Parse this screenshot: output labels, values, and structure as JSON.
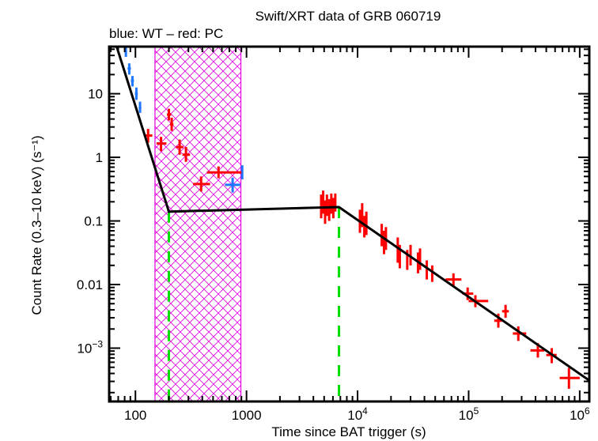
{
  "chart_data": {
    "type": "scatter",
    "title": "Swift/XRT data of GRB 060719",
    "subtitle": "blue: WT – red: PC",
    "xlabel": "Time since BAT trigger (s)",
    "ylabel": "Count Rate (0.3–10 keV) (s⁻¹)",
    "xscale": "log",
    "yscale": "log",
    "xlim": [
      58,
      1220000
    ],
    "ylim": [
      0.000145,
      55
    ],
    "x_ticks": [
      {
        "value": 100,
        "label": "100"
      },
      {
        "value": 1000,
        "label": "1000"
      },
      {
        "value": 10000,
        "label": "10",
        "exp": "4"
      },
      {
        "value": 100000,
        "label": "10",
        "exp": "5"
      },
      {
        "value": 1000000,
        "label": "10",
        "exp": "6"
      }
    ],
    "y_ticks": [
      {
        "value": 10,
        "label": "10"
      },
      {
        "value": 1,
        "label": "1"
      },
      {
        "value": 0.1,
        "label": "0.1"
      },
      {
        "value": 0.01,
        "label": "0.01"
      },
      {
        "value": 0.001,
        "label": "10",
        "exp": "−3"
      }
    ],
    "grid": false,
    "series": [
      {
        "name": "WT",
        "color": "#1e78ff",
        "points": [
          {
            "t": 82,
            "t_lo": 80,
            "t_hi": 84,
            "r": 45,
            "r_lo": 38,
            "r_hi": 54
          },
          {
            "t": 88,
            "t_lo": 85,
            "t_hi": 91,
            "r": 25,
            "r_lo": 20,
            "r_hi": 30
          },
          {
            "t": 94,
            "t_lo": 91,
            "t_hi": 97,
            "r": 16,
            "r_lo": 13,
            "r_hi": 19
          },
          {
            "t": 102,
            "t_lo": 99,
            "t_hi": 105,
            "r": 10,
            "r_lo": 8,
            "r_hi": 12.5
          },
          {
            "t": 110,
            "t_lo": 107,
            "t_hi": 113,
            "r": 6,
            "r_lo": 5,
            "r_hi": 7.5
          },
          {
            "t": 750,
            "t_lo": 640,
            "t_hi": 880,
            "r": 0.37,
            "r_lo": 0.28,
            "r_hi": 0.48
          },
          {
            "t": 915,
            "t_lo": 900,
            "t_hi": 930,
            "r": 0.58,
            "r_lo": 0.45,
            "r_hi": 0.75
          }
        ]
      },
      {
        "name": "PC",
        "color": "#ff0000",
        "points": [
          {
            "t": 130,
            "t_lo": 120,
            "t_hi": 142,
            "r": 2.2,
            "r_lo": 1.7,
            "r_hi": 2.8
          },
          {
            "t": 170,
            "t_lo": 155,
            "t_hi": 190,
            "r": 1.65,
            "r_lo": 1.25,
            "r_hi": 2.1
          },
          {
            "t": 200,
            "t_lo": 192,
            "t_hi": 210,
            "r": 4.7,
            "r_lo": 3.8,
            "r_hi": 5.8
          },
          {
            "t": 212,
            "t_lo": 205,
            "t_hi": 220,
            "r": 3.3,
            "r_lo": 2.6,
            "r_hi": 4.2
          },
          {
            "t": 250,
            "t_lo": 232,
            "t_hi": 270,
            "r": 1.45,
            "r_lo": 1.1,
            "r_hi": 1.9
          },
          {
            "t": 285,
            "t_lo": 265,
            "t_hi": 310,
            "r": 1.1,
            "r_lo": 0.85,
            "r_hi": 1.45
          },
          {
            "t": 390,
            "t_lo": 330,
            "t_hi": 470,
            "r": 0.38,
            "r_lo": 0.29,
            "r_hi": 0.5
          },
          {
            "t": 560,
            "t_lo": 440,
            "t_hi": 900,
            "r": 0.58,
            "r_lo": 0.47,
            "r_hi": 0.72
          },
          {
            "t": 4700,
            "t_lo": 4600,
            "t_hi": 4800,
            "r": 0.17,
            "r_lo": 0.11,
            "r_hi": 0.26
          },
          {
            "t": 4900,
            "t_lo": 4800,
            "t_hi": 5000,
            "r": 0.2,
            "r_lo": 0.13,
            "r_hi": 0.3
          },
          {
            "t": 5100,
            "t_lo": 5000,
            "t_hi": 5200,
            "r": 0.14,
            "r_lo": 0.09,
            "r_hi": 0.21
          },
          {
            "t": 5300,
            "t_lo": 5200,
            "t_hi": 5400,
            "r": 0.18,
            "r_lo": 0.12,
            "r_hi": 0.26
          },
          {
            "t": 5550,
            "t_lo": 5450,
            "t_hi": 5650,
            "r": 0.15,
            "r_lo": 0.1,
            "r_hi": 0.22
          },
          {
            "t": 5800,
            "t_lo": 5700,
            "t_hi": 5900,
            "r": 0.19,
            "r_lo": 0.13,
            "r_hi": 0.27
          },
          {
            "t": 6050,
            "t_lo": 5950,
            "t_hi": 6150,
            "r": 0.16,
            "r_lo": 0.11,
            "r_hi": 0.23
          },
          {
            "t": 6300,
            "t_lo": 6200,
            "t_hi": 6400,
            "r": 0.2,
            "r_lo": 0.14,
            "r_hi": 0.27
          },
          {
            "t": 10500,
            "t_lo": 10300,
            "t_hi": 10700,
            "r": 0.1,
            "r_lo": 0.065,
            "r_hi": 0.15
          },
          {
            "t": 11000,
            "t_lo": 10800,
            "t_hi": 11200,
            "r": 0.13,
            "r_lo": 0.08,
            "r_hi": 0.19
          },
          {
            "t": 11500,
            "t_lo": 11300,
            "t_hi": 11700,
            "r": 0.085,
            "r_lo": 0.055,
            "r_hi": 0.12
          },
          {
            "t": 12000,
            "t_lo": 11800,
            "t_hi": 12200,
            "r": 0.095,
            "r_lo": 0.06,
            "r_hi": 0.14
          },
          {
            "t": 16500,
            "t_lo": 16200,
            "t_hi": 16800,
            "r": 0.06,
            "r_lo": 0.04,
            "r_hi": 0.09
          },
          {
            "t": 17300,
            "t_lo": 17000,
            "t_hi": 17600,
            "r": 0.045,
            "r_lo": 0.03,
            "r_hi": 0.07
          },
          {
            "t": 18000,
            "t_lo": 17700,
            "t_hi": 18300,
            "r": 0.055,
            "r_lo": 0.035,
            "r_hi": 0.08
          },
          {
            "t": 23000,
            "t_lo": 22600,
            "t_hi": 23400,
            "r": 0.035,
            "r_lo": 0.022,
            "r_hi": 0.055
          },
          {
            "t": 24000,
            "t_lo": 23600,
            "t_hi": 24400,
            "r": 0.028,
            "r_lo": 0.018,
            "r_hi": 0.042
          },
          {
            "t": 28000,
            "t_lo": 27600,
            "t_hi": 28400,
            "r": 0.025,
            "r_lo": 0.017,
            "r_hi": 0.035
          },
          {
            "t": 30000,
            "t_lo": 29600,
            "t_hi": 30400,
            "r": 0.03,
            "r_lo": 0.02,
            "r_hi": 0.042
          },
          {
            "t": 35000,
            "t_lo": 34500,
            "t_hi": 35500,
            "r": 0.022,
            "r_lo": 0.015,
            "r_hi": 0.032
          },
          {
            "t": 36500,
            "t_lo": 36000,
            "t_hi": 37000,
            "r": 0.026,
            "r_lo": 0.017,
            "r_hi": 0.037
          },
          {
            "t": 42000,
            "t_lo": 41500,
            "t_hi": 42500,
            "r": 0.017,
            "r_lo": 0.012,
            "r_hi": 0.024
          },
          {
            "t": 47000,
            "t_lo": 46500,
            "t_hi": 47500,
            "r": 0.015,
            "r_lo": 0.011,
            "r_hi": 0.02
          },
          {
            "t": 73000,
            "t_lo": 62000,
            "t_hi": 86000,
            "r": 0.012,
            "r_lo": 0.0095,
            "r_hi": 0.015
          },
          {
            "t": 98000,
            "t_lo": 88000,
            "t_hi": 110000,
            "r": 0.0072,
            "r_lo": 0.0057,
            "r_hi": 0.009
          },
          {
            "t": 115000,
            "t_lo": 100000,
            "t_hi": 150000,
            "r": 0.0055,
            "r_lo": 0.0044,
            "r_hi": 0.0068
          },
          {
            "t": 185000,
            "t_lo": 170000,
            "t_hi": 200000,
            "r": 0.0027,
            "r_lo": 0.0021,
            "r_hi": 0.0035
          },
          {
            "t": 215000,
            "t_lo": 200000,
            "t_hi": 230000,
            "r": 0.0038,
            "r_lo": 0.003,
            "r_hi": 0.0048
          },
          {
            "t": 280000,
            "t_lo": 250000,
            "t_hi": 330000,
            "r": 0.0017,
            "r_lo": 0.0013,
            "r_hi": 0.0022
          },
          {
            "t": 420000,
            "t_lo": 360000,
            "t_hi": 480000,
            "r": 0.00092,
            "r_lo": 0.00071,
            "r_hi": 0.0012
          },
          {
            "t": 560000,
            "t_lo": 500000,
            "t_hi": 620000,
            "r": 0.00078,
            "r_lo": 0.00058,
            "r_hi": 0.001
          },
          {
            "t": 800000,
            "t_lo": 660000,
            "t_hi": 1000000,
            "r": 0.00034,
            "r_lo": 0.00023,
            "r_hi": 0.00049
          }
        ]
      }
    ],
    "model": {
      "name": "broken power-law fit",
      "color": "#000000",
      "points": [
        {
          "t": 58,
          "r": 130
        },
        {
          "t": 200,
          "r": 0.14
        },
        {
          "t": 6800,
          "r": 0.165
        },
        {
          "t": 1220000,
          "r": 0.00031
        }
      ]
    },
    "breaks": {
      "color": "#00e000",
      "times": [
        200,
        6800
      ]
    },
    "excluded_region": {
      "color": "#e000e0",
      "t_start": 150,
      "t_end": 890
    }
  }
}
